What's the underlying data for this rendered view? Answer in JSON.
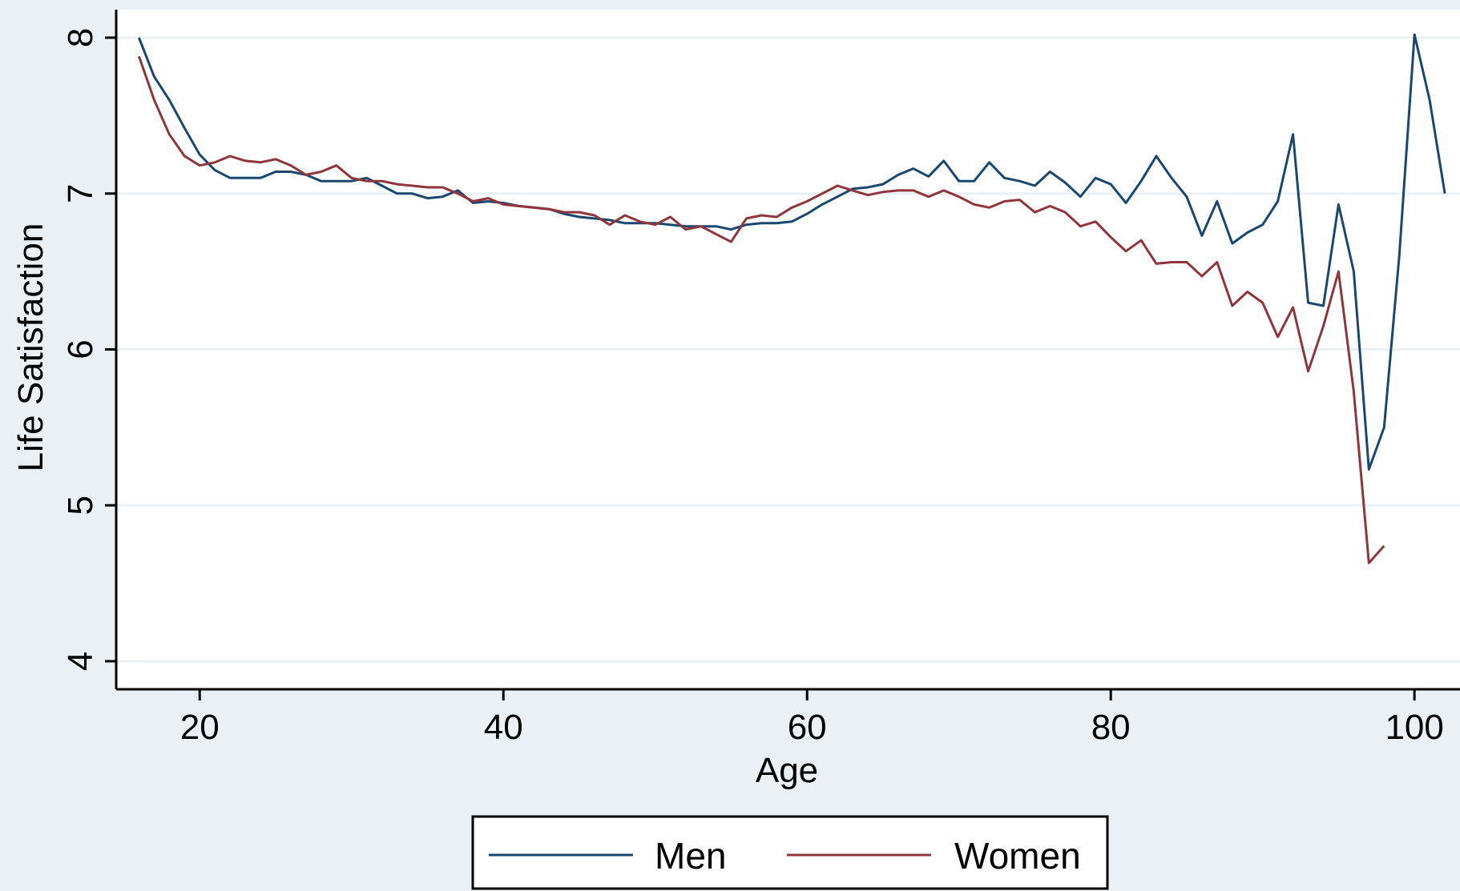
{
  "chart_data": {
    "type": "line",
    "xlabel": "Age",
    "ylabel": "Life Satisfaction",
    "xlim": [
      14.5,
      103
    ],
    "ylim": [
      3.82,
      8.18
    ],
    "x_ticks": [
      20,
      40,
      60,
      80,
      100
    ],
    "y_ticks": [
      4,
      5,
      6,
      7,
      8
    ],
    "grid": "horizontal",
    "legend": "bottom",
    "series": [
      {
        "name": "Men",
        "color": "#1a476f",
        "points": [
          [
            16,
            8.0
          ],
          [
            17,
            7.75
          ],
          [
            18,
            7.6
          ],
          [
            19,
            7.42
          ],
          [
            20,
            7.25
          ],
          [
            21,
            7.15
          ],
          [
            22,
            7.1
          ],
          [
            23,
            7.1
          ],
          [
            24,
            7.1
          ],
          [
            25,
            7.14
          ],
          [
            26,
            7.14
          ],
          [
            27,
            7.12
          ],
          [
            28,
            7.08
          ],
          [
            29,
            7.08
          ],
          [
            30,
            7.08
          ],
          [
            31,
            7.1
          ],
          [
            32,
            7.05
          ],
          [
            33,
            7.0
          ],
          [
            34,
            7.0
          ],
          [
            35,
            6.97
          ],
          [
            36,
            6.98
          ],
          [
            37,
            7.02
          ],
          [
            38,
            6.94
          ],
          [
            39,
            6.95
          ],
          [
            40,
            6.94
          ],
          [
            41,
            6.92
          ],
          [
            42,
            6.91
          ],
          [
            43,
            6.9
          ],
          [
            44,
            6.87
          ],
          [
            45,
            6.85
          ],
          [
            46,
            6.84
          ],
          [
            47,
            6.83
          ],
          [
            48,
            6.81
          ],
          [
            49,
            6.81
          ],
          [
            50,
            6.81
          ],
          [
            51,
            6.8
          ],
          [
            52,
            6.79
          ],
          [
            53,
            6.79
          ],
          [
            54,
            6.79
          ],
          [
            55,
            6.77
          ],
          [
            56,
            6.8
          ],
          [
            57,
            6.81
          ],
          [
            58,
            6.81
          ],
          [
            59,
            6.82
          ],
          [
            60,
            6.87
          ],
          [
            61,
            6.93
          ],
          [
            62,
            6.98
          ],
          [
            63,
            7.03
          ],
          [
            64,
            7.04
          ],
          [
            65,
            7.06
          ],
          [
            66,
            7.12
          ],
          [
            67,
            7.16
          ],
          [
            68,
            7.11
          ],
          [
            69,
            7.21
          ],
          [
            70,
            7.08
          ],
          [
            71,
            7.08
          ],
          [
            72,
            7.2
          ],
          [
            73,
            7.1
          ],
          [
            74,
            7.08
          ],
          [
            75,
            7.05
          ],
          [
            76,
            7.14
          ],
          [
            77,
            7.07
          ],
          [
            78,
            6.98
          ],
          [
            79,
            7.1
          ],
          [
            80,
            7.06
          ],
          [
            81,
            6.94
          ],
          [
            82,
            7.08
          ],
          [
            83,
            7.24
          ],
          [
            84,
            7.1
          ],
          [
            85,
            6.98
          ],
          [
            86,
            6.73
          ],
          [
            87,
            6.95
          ],
          [
            88,
            6.68
          ],
          [
            89,
            6.75
          ],
          [
            90,
            6.8
          ],
          [
            91,
            6.95
          ],
          [
            92,
            7.38
          ],
          [
            93,
            6.3
          ],
          [
            94,
            6.28
          ],
          [
            95,
            6.93
          ],
          [
            96,
            6.5
          ],
          [
            97,
            5.23
          ],
          [
            98,
            5.5
          ],
          [
            99,
            6.6
          ],
          [
            100,
            8.02
          ],
          [
            101,
            7.6
          ],
          [
            102,
            7.0
          ]
        ]
      },
      {
        "name": "Women",
        "color": "#90353b",
        "points": [
          [
            16,
            7.88
          ],
          [
            17,
            7.6
          ],
          [
            18,
            7.38
          ],
          [
            19,
            7.24
          ],
          [
            20,
            7.18
          ],
          [
            21,
            7.2
          ],
          [
            22,
            7.24
          ],
          [
            23,
            7.21
          ],
          [
            24,
            7.2
          ],
          [
            25,
            7.22
          ],
          [
            26,
            7.18
          ],
          [
            27,
            7.12
          ],
          [
            28,
            7.14
          ],
          [
            29,
            7.18
          ],
          [
            30,
            7.1
          ],
          [
            31,
            7.08
          ],
          [
            32,
            7.08
          ],
          [
            33,
            7.06
          ],
          [
            34,
            7.05
          ],
          [
            35,
            7.04
          ],
          [
            36,
            7.04
          ],
          [
            37,
            7.0
          ],
          [
            38,
            6.95
          ],
          [
            39,
            6.97
          ],
          [
            40,
            6.93
          ],
          [
            41,
            6.92
          ],
          [
            42,
            6.91
          ],
          [
            43,
            6.9
          ],
          [
            44,
            6.88
          ],
          [
            45,
            6.88
          ],
          [
            46,
            6.86
          ],
          [
            47,
            6.8
          ],
          [
            48,
            6.86
          ],
          [
            49,
            6.82
          ],
          [
            50,
            6.8
          ],
          [
            51,
            6.85
          ],
          [
            52,
            6.77
          ],
          [
            53,
            6.79
          ],
          [
            54,
            6.74
          ],
          [
            55,
            6.69
          ],
          [
            56,
            6.84
          ],
          [
            57,
            6.86
          ],
          [
            58,
            6.85
          ],
          [
            59,
            6.91
          ],
          [
            60,
            6.95
          ],
          [
            61,
            7.0
          ],
          [
            62,
            7.05
          ],
          [
            63,
            7.02
          ],
          [
            64,
            6.99
          ],
          [
            65,
            7.01
          ],
          [
            66,
            7.02
          ],
          [
            67,
            7.02
          ],
          [
            68,
            6.98
          ],
          [
            69,
            7.02
          ],
          [
            70,
            6.98
          ],
          [
            71,
            6.93
          ],
          [
            72,
            6.91
          ],
          [
            73,
            6.95
          ],
          [
            74,
            6.96
          ],
          [
            75,
            6.88
          ],
          [
            76,
            6.92
          ],
          [
            77,
            6.88
          ],
          [
            78,
            6.79
          ],
          [
            79,
            6.82
          ],
          [
            80,
            6.72
          ],
          [
            81,
            6.63
          ],
          [
            82,
            6.7
          ],
          [
            83,
            6.55
          ],
          [
            84,
            6.56
          ],
          [
            85,
            6.56
          ],
          [
            86,
            6.47
          ],
          [
            87,
            6.56
          ],
          [
            88,
            6.28
          ],
          [
            89,
            6.37
          ],
          [
            90,
            6.3
          ],
          [
            91,
            6.08
          ],
          [
            92,
            6.27
          ],
          [
            93,
            5.86
          ],
          [
            94,
            6.15
          ],
          [
            95,
            6.5
          ],
          [
            96,
            5.73
          ],
          [
            97,
            4.63
          ],
          [
            98,
            4.74
          ]
        ]
      }
    ]
  }
}
